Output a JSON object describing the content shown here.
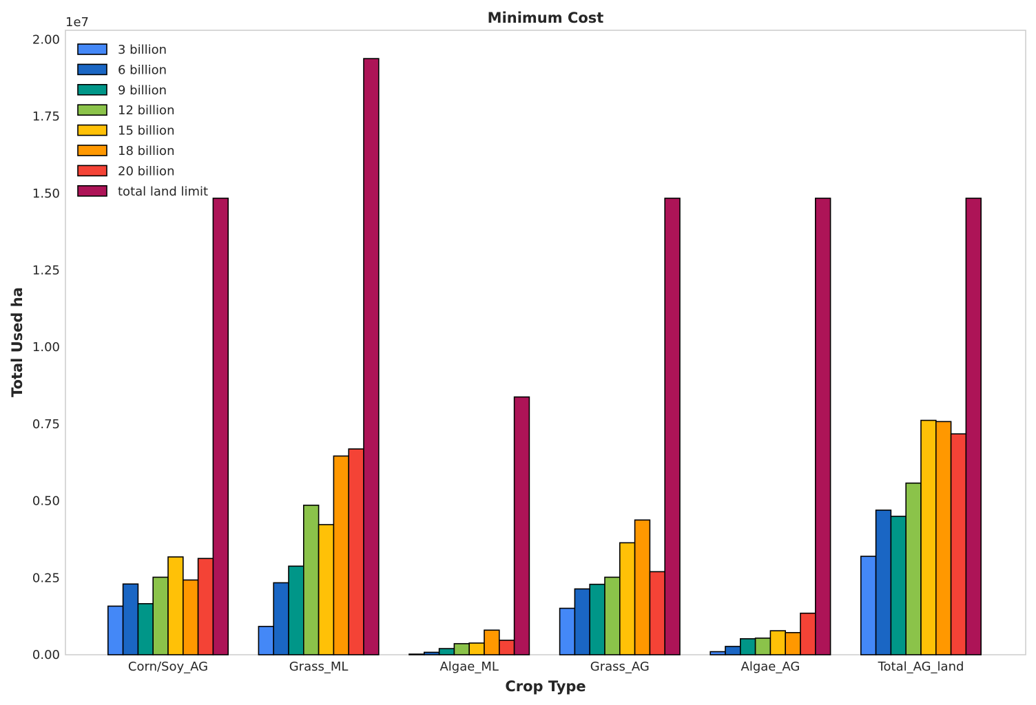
{
  "chart_data": {
    "type": "bar",
    "title": "Minimum Cost",
    "xlabel": "Crop Type",
    "ylabel": "Total Used ha",
    "y_offset_label": "1e7",
    "ylim": [
      0,
      2.03
    ],
    "y_scale": 10000000,
    "yticks": [
      0,
      0.25,
      0.5,
      0.75,
      1.0,
      1.25,
      1.5,
      1.75,
      2.0
    ],
    "ytick_labels": [
      "0.00",
      "0.25",
      "0.50",
      "0.75",
      "1.00",
      "1.25",
      "1.50",
      "1.75",
      "2.00"
    ],
    "grid": false,
    "legend_position": "top-left",
    "categories": [
      "Corn/Soy_AG",
      "Grass_ML",
      "Algae_ML",
      "Grass_AG",
      "Algae_AG",
      "Total_AG_land"
    ],
    "series": [
      {
        "name": "3 billion",
        "color": "#4488f7",
        "values": [
          0.158,
          0.092,
          0.002,
          0.151,
          0.01,
          0.32
        ]
      },
      {
        "name": "6 billion",
        "color": "#1a66c4",
        "values": [
          0.23,
          0.234,
          0.008,
          0.214,
          0.027,
          0.47
        ]
      },
      {
        "name": "9 billion",
        "color": "#009688",
        "values": [
          0.166,
          0.288,
          0.02,
          0.229,
          0.052,
          0.45
        ]
      },
      {
        "name": "12 billion",
        "color": "#8bc34a",
        "values": [
          0.252,
          0.486,
          0.036,
          0.252,
          0.054,
          0.558
        ]
      },
      {
        "name": "15 billion",
        "color": "#ffc107",
        "values": [
          0.318,
          0.423,
          0.038,
          0.364,
          0.078,
          0.762
        ]
      },
      {
        "name": "18 billion",
        "color": "#ff9800",
        "values": [
          0.243,
          0.646,
          0.08,
          0.438,
          0.072,
          0.758
        ]
      },
      {
        "name": "20 billion",
        "color": "#f44336",
        "values": [
          0.313,
          0.669,
          0.047,
          0.27,
          0.135,
          0.718
        ]
      },
      {
        "name": "total land limit",
        "color": "#ad1457",
        "values": [
          1.484,
          1.938,
          0.838,
          1.484,
          1.484,
          1.484
        ]
      }
    ]
  }
}
